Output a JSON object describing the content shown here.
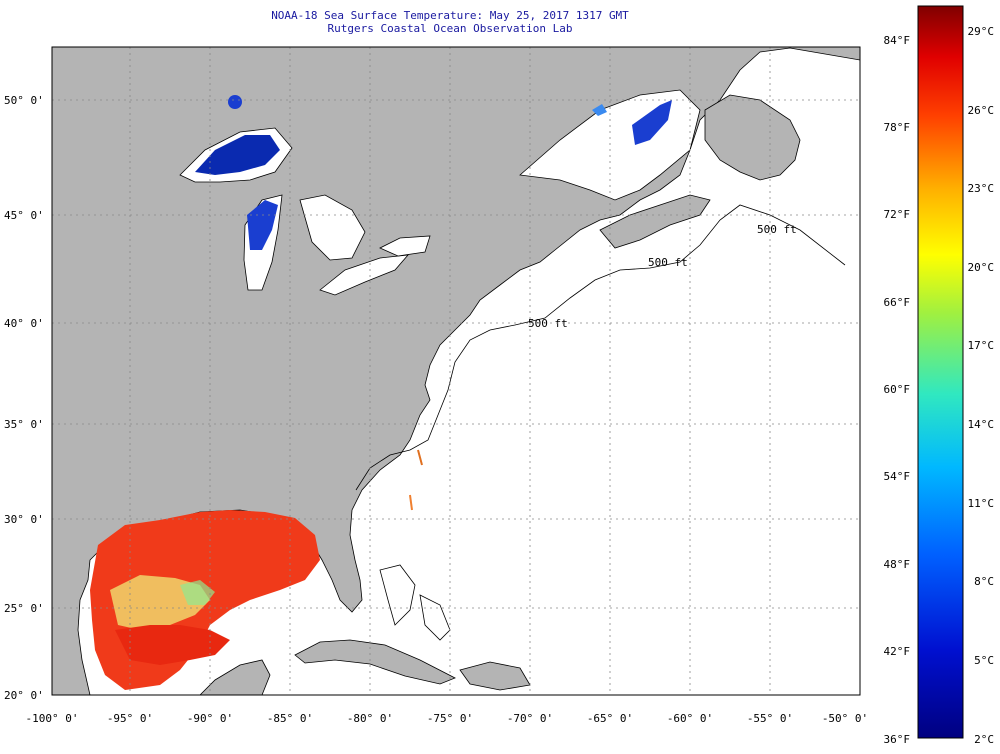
{
  "title": {
    "line1": "NOAA-18 Sea Surface Temperature:  May 25, 2017 1317 GMT",
    "line2": "Rutgers Coastal Ocean Observation Lab"
  },
  "map": {
    "lat_labels": [
      "50° 0'",
      "45° 0'",
      "40° 0'",
      "35° 0'",
      "30° 0'",
      "25° 0'",
      "20° 0'"
    ],
    "lon_labels": [
      "-100° 0'",
      "-95° 0'",
      "-90° 0'",
      "-85° 0'",
      "-80° 0'",
      "-75° 0'",
      "-70° 0'",
      "-65° 0'",
      "-60° 0'",
      "-55° 0'",
      "-50° 0'"
    ],
    "isobath_labels": [
      "500 ft",
      "500 ft",
      "500 ft"
    ],
    "colors": {
      "land": "#b4b4b4",
      "ocean": "#ffffff",
      "warm_water": "#f03a1a",
      "cold_lake": "#0a2ab0"
    }
  },
  "colorbar": {
    "f_labels": [
      "84°F",
      "78°F",
      "72°F",
      "66°F",
      "60°F",
      "54°F",
      "48°F",
      "42°F",
      "36°F"
    ],
    "c_labels": [
      "29°C",
      "26°C",
      "23°C",
      "20°C",
      "17°C",
      "14°C",
      "11°C",
      "8°C",
      "5°C",
      "2°C"
    ]
  }
}
